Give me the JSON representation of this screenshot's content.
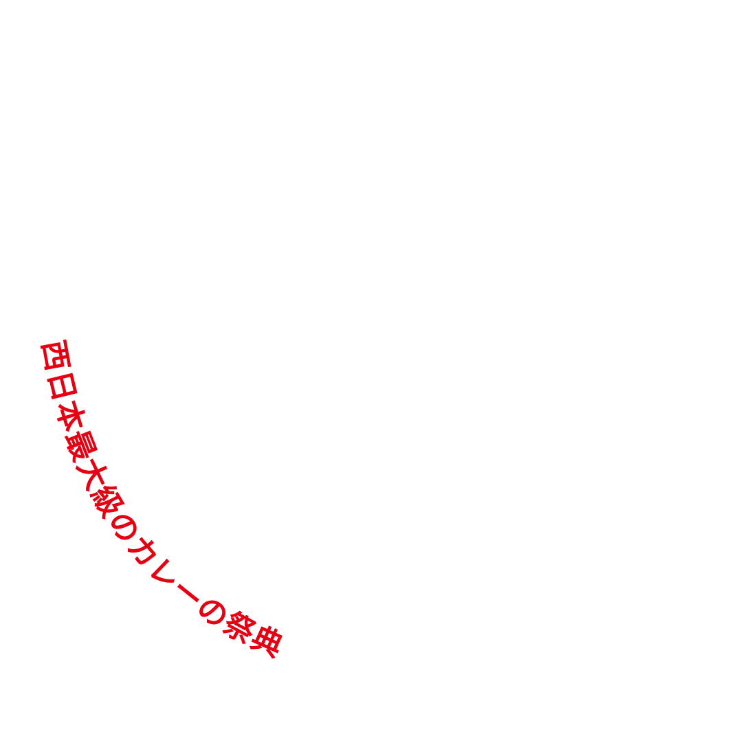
{
  "headline": {
    "text": "西日本最大級のカレーの祭典",
    "color": "#e60012"
  }
}
